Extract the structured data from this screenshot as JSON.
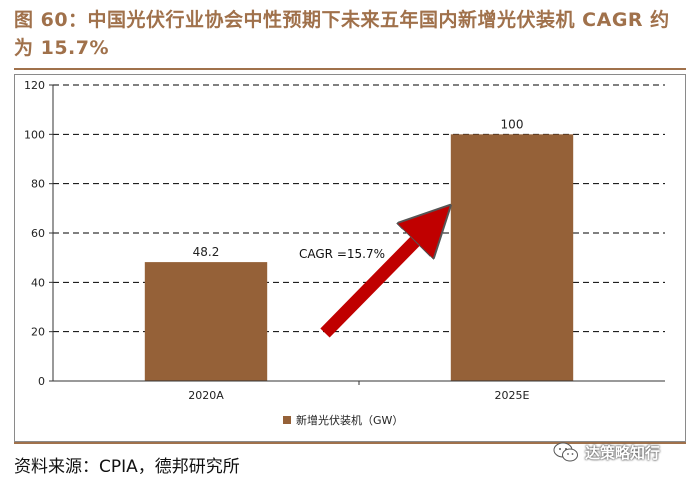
{
  "figure": {
    "title": "图 60：中国光伏行业协会中性预期下未来五年国内新增光伏装机 CAGR 约为 15.7%",
    "source": "资料来源：CPIA，德邦研究所",
    "watermark": "达策略知行",
    "colors": {
      "title": "#a0714b",
      "bar": "#956138",
      "arrow": "#c00000"
    }
  },
  "chart_data": {
    "type": "bar",
    "categories": [
      "2020A",
      "2025E"
    ],
    "series": [
      {
        "name": "新增光伏装机（GW）",
        "values": [
          48.2,
          100
        ]
      }
    ],
    "data_labels": [
      "48.2",
      "100"
    ],
    "y_ticks": [
      "0",
      "20",
      "40",
      "60",
      "80",
      "100",
      "120"
    ],
    "ylim": [
      0,
      120
    ],
    "grid": "horizontal-dashed",
    "legend": "bottom",
    "annotation": "CAGR =15.7%"
  }
}
